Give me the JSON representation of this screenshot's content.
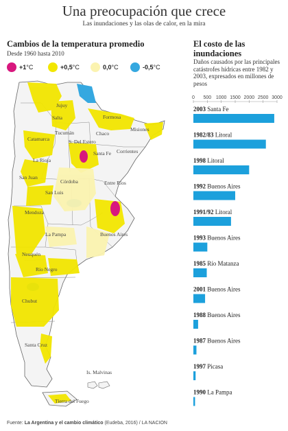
{
  "header": {
    "title": "Una preocupación que crece",
    "subtitle": "Las inundaciones y las olas de calor, en la mira"
  },
  "map_panel": {
    "title": "Cambios de la temperatura promedio",
    "subtitle": "Desde 1960 hasta 2010",
    "legend": [
      {
        "value": "+1",
        "unit": "°C",
        "color": "#d8177e"
      },
      {
        "value": "+0,5",
        "unit": "°C",
        "color": "#f2e600"
      },
      {
        "value": "0,0",
        "unit": "°C",
        "color": "#fbf3b0"
      },
      {
        "value": "-0,5",
        "unit": "°C",
        "color": "#35a8e0"
      }
    ],
    "provinces": [
      "Jujuy",
      "Salta",
      "Formosa",
      "Tucumán",
      "Chaco",
      "Misiones",
      "Catamarca",
      "S. Del Estero",
      "Santa Fe",
      "Corrientes",
      "La Rioja",
      "San Juan",
      "Córdoba",
      "Entre Ríos",
      "San Luis",
      "Mendoza",
      "La Pampa",
      "Buenos Aires",
      "Neuquén",
      "Río Negro",
      "Chubut",
      "Santa Cruz",
      "Is. Malvinas",
      "Tierra del Fuego"
    ]
  },
  "flood_panel": {
    "title_line1": "El costo de las",
    "title_line2": "inundaciones",
    "description": "Daños causados por las principales catástrofes hídricas entre 1982 y 2003, expresados en millones de pesos"
  },
  "chart_data": {
    "type": "bar",
    "orientation": "horizontal",
    "title": "El costo de las inundaciones",
    "unit": "millones de pesos",
    "xlim": [
      0,
      3000
    ],
    "ticks": [
      0,
      500,
      1000,
      1500,
      2000,
      2500,
      3000
    ],
    "color": "#1ca0dc",
    "bars": [
      {
        "year": "2003",
        "place": "Santa Fe",
        "value": 2900
      },
      {
        "year": "1982/83",
        "place": "Litoral",
        "value": 2600
      },
      {
        "year": "1998",
        "place": "Litoral",
        "value": 2000
      },
      {
        "year": "1992",
        "place": "Buenos Aires",
        "value": 1500
      },
      {
        "year": "1991/92",
        "place": "Litoral",
        "value": 1350
      },
      {
        "year": "1993",
        "place": "Buenos Aires",
        "value": 500
      },
      {
        "year": "1985",
        "place": "Río Matanza",
        "value": 480
      },
      {
        "year": "2001",
        "place": "Buenos Aires",
        "value": 420
      },
      {
        "year": "1988",
        "place": "Buenos Aires",
        "value": 170
      },
      {
        "year": "1987",
        "place": "Buenos Aires",
        "value": 110
      },
      {
        "year": "1997",
        "place": "Picasa",
        "value": 80
      },
      {
        "year": "1990",
        "place": "La Pampa",
        "value": 60
      }
    ]
  },
  "source": {
    "prefix": "Fuente: ",
    "bold": "La Argentina y el cambio climático",
    "rest": " (Eudeba, 2016) / LA NACION"
  }
}
